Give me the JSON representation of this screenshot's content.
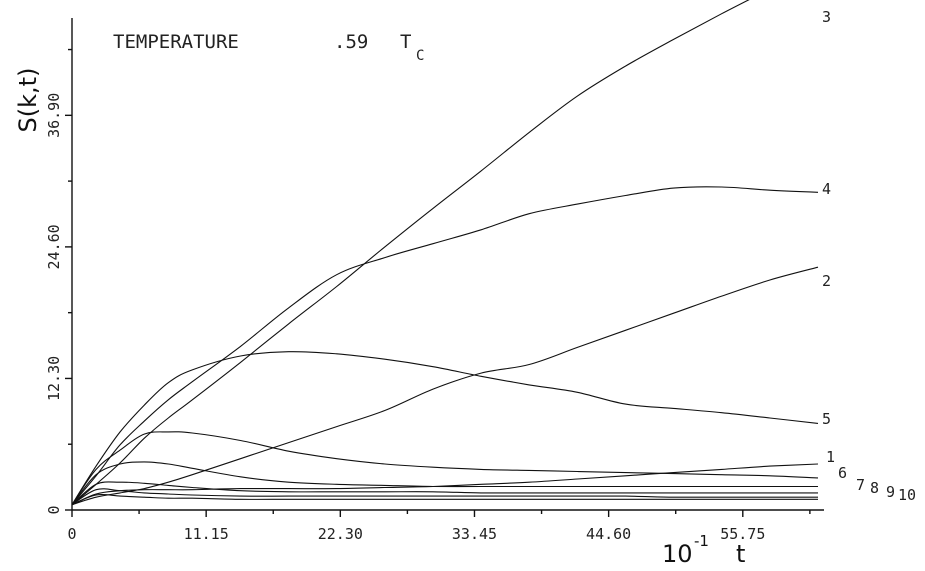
{
  "chart_data": {
    "type": "line",
    "title_text": "TEMPERATURE",
    "title_value": ".59",
    "title_symbol": "T",
    "title_subscript": "C",
    "ylabel": "S(k,t)",
    "xlabel_base": "10",
    "xlabel_exp": "-1",
    "xlabel_var": "t",
    "xlim": [
      0,
      62
    ],
    "ylim": [
      0,
      46
    ],
    "x_ticks": [
      0,
      11.15,
      22.3,
      33.45,
      44.6,
      55.75
    ],
    "x_tick_labels": [
      "0",
      "11.15",
      "22.30",
      "33.45",
      "44.60",
      "55.75"
    ],
    "y_ticks": [
      0,
      12.3,
      24.6,
      36.9
    ],
    "y_tick_labels": [
      "0",
      "12.30",
      "24.60",
      "36.90"
    ],
    "x": [
      0,
      2,
      4,
      6,
      8,
      10,
      14,
      18,
      22,
      26,
      30,
      34,
      38,
      42,
      46,
      50,
      54,
      58,
      62
    ],
    "series": [
      {
        "name": "1",
        "values": [
          0.5,
          1.5,
          1.8,
          1.9,
          1.9,
          1.9,
          2.0,
          2.0,
          2.0,
          2.1,
          2.2,
          2.4,
          2.6,
          2.9,
          3.2,
          3.5,
          3.8,
          4.1,
          4.3
        ]
      },
      {
        "name": "2",
        "values": [
          0.5,
          1.2,
          1.6,
          2.0,
          2.6,
          3.3,
          4.8,
          6.3,
          7.8,
          9.3,
          11.3,
          12.8,
          13.6,
          15.2,
          16.8,
          18.4,
          20.0,
          21.5,
          22.7
        ]
      },
      {
        "name": "3",
        "values": [
          0.5,
          2.4,
          4.4,
          6.7,
          8.6,
          10.3,
          13.8,
          17.4,
          20.9,
          24.6,
          28.2,
          31.7,
          35.3,
          38.7,
          41.5,
          44.0,
          46.4,
          48.7,
          51.0
        ]
      },
      {
        "name": "4",
        "values": [
          0.5,
          3.2,
          6.1,
          8.3,
          10.3,
          12.0,
          15.3,
          18.9,
          22.0,
          23.6,
          24.9,
          26.2,
          27.7,
          28.6,
          29.4,
          30.1,
          30.2,
          29.9,
          29.7
        ]
      },
      {
        "name": "5",
        "values": [
          0.5,
          4.1,
          7.3,
          9.8,
          11.9,
          13.1,
          14.4,
          14.8,
          14.6,
          14.1,
          13.4,
          12.5,
          11.7,
          11.0,
          9.9,
          9.5,
          9.1,
          8.6,
          8.1
        ]
      },
      {
        "name": "6",
        "values": [
          0.5,
          3.8,
          5.6,
          7.1,
          7.3,
          7.2,
          6.5,
          5.5,
          4.8,
          4.3,
          4.0,
          3.8,
          3.7,
          3.6,
          3.5,
          3.4,
          3.3,
          3.2,
          3.0
        ]
      },
      {
        "name": "7",
        "values": [
          0.5,
          3.3,
          4.3,
          4.5,
          4.3,
          3.9,
          3.1,
          2.6,
          2.4,
          2.3,
          2.2,
          2.2,
          2.2,
          2.2,
          2.2,
          2.2,
          2.2,
          2.2,
          2.2
        ]
      },
      {
        "name": "8",
        "values": [
          0.5,
          2.4,
          2.6,
          2.5,
          2.3,
          2.1,
          1.8,
          1.7,
          1.7,
          1.7,
          1.7,
          1.6,
          1.6,
          1.6,
          1.6,
          1.6,
          1.6,
          1.6,
          1.6
        ]
      },
      {
        "name": "9",
        "values": [
          0.5,
          1.9,
          1.8,
          1.6,
          1.5,
          1.4,
          1.3,
          1.3,
          1.3,
          1.3,
          1.3,
          1.3,
          1.3,
          1.3,
          1.3,
          1.2,
          1.2,
          1.2,
          1.2
        ]
      },
      {
        "name": "10",
        "values": [
          0.5,
          1.4,
          1.3,
          1.2,
          1.1,
          1.1,
          1.0,
          1.0,
          1.0,
          1.0,
          1.0,
          1.0,
          1.0,
          1.0,
          1.0,
          1.0,
          1.0,
          1.0,
          1.0
        ]
      }
    ]
  }
}
